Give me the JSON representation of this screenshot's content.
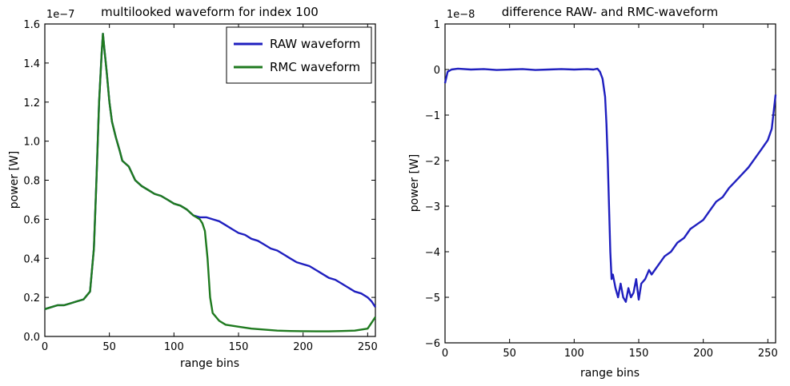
{
  "colors": {
    "raw": "#1f1fbf",
    "rmc": "#1f7a1f",
    "background": "#ffffff",
    "axis": "#000000"
  },
  "chart_data": [
    {
      "type": "line",
      "title": "multilooked waveform for index 100",
      "xlabel": "range bins",
      "ylabel": "power [W]",
      "offset_text": "1e−7",
      "xlim": [
        0,
        256
      ],
      "ylim": [
        0.0,
        1.6
      ],
      "xticks": [
        0,
        50,
        100,
        150,
        200,
        250
      ],
      "xtick_labels": [
        "0",
        "50",
        "100",
        "150",
        "200",
        "250"
      ],
      "yticks": [
        0.0,
        0.2,
        0.4,
        0.6,
        0.8,
        1.0,
        1.2,
        1.4,
        1.6
      ],
      "ytick_labels": [
        "0.0",
        "0.2",
        "0.4",
        "0.6",
        "0.8",
        "1.0",
        "1.2",
        "1.4",
        "1.6"
      ],
      "grid": false,
      "legend_position": "top-right",
      "series": [
        {
          "name": "RAW waveform",
          "color": "#1f1fbf",
          "x": [
            0,
            5,
            10,
            15,
            20,
            25,
            30,
            35,
            38,
            40,
            42,
            44,
            45,
            46,
            48,
            50,
            52,
            55,
            58,
            60,
            65,
            70,
            75,
            80,
            85,
            90,
            95,
            100,
            105,
            110,
            115,
            120,
            125,
            130,
            135,
            140,
            145,
            150,
            155,
            160,
            165,
            170,
            175,
            180,
            185,
            190,
            195,
            200,
            205,
            210,
            215,
            220,
            225,
            230,
            235,
            240,
            245,
            250,
            253,
            256
          ],
          "y": [
            0.14,
            0.15,
            0.16,
            0.16,
            0.17,
            0.18,
            0.19,
            0.23,
            0.45,
            0.8,
            1.2,
            1.45,
            1.55,
            1.48,
            1.35,
            1.2,
            1.1,
            1.02,
            0.95,
            0.9,
            0.87,
            0.8,
            0.77,
            0.75,
            0.73,
            0.72,
            0.7,
            0.68,
            0.67,
            0.65,
            0.62,
            0.61,
            0.61,
            0.6,
            0.59,
            0.57,
            0.55,
            0.53,
            0.52,
            0.5,
            0.49,
            0.47,
            0.45,
            0.44,
            0.42,
            0.4,
            0.38,
            0.37,
            0.36,
            0.34,
            0.32,
            0.3,
            0.29,
            0.27,
            0.25,
            0.23,
            0.22,
            0.2,
            0.18,
            0.15
          ]
        },
        {
          "name": "RMC waveform",
          "color": "#1f7a1f",
          "x": [
            0,
            5,
            10,
            15,
            20,
            25,
            30,
            35,
            38,
            40,
            42,
            44,
            45,
            46,
            48,
            50,
            52,
            55,
            58,
            60,
            65,
            70,
            75,
            80,
            85,
            90,
            95,
            100,
            105,
            110,
            115,
            120,
            122,
            124,
            126,
            128,
            130,
            135,
            140,
            150,
            160,
            170,
            180,
            190,
            200,
            210,
            220,
            230,
            240,
            245,
            250,
            253,
            256
          ],
          "y": [
            0.14,
            0.15,
            0.16,
            0.16,
            0.17,
            0.18,
            0.19,
            0.23,
            0.45,
            0.8,
            1.2,
            1.45,
            1.55,
            1.48,
            1.35,
            1.2,
            1.1,
            1.02,
            0.95,
            0.9,
            0.87,
            0.8,
            0.77,
            0.75,
            0.73,
            0.72,
            0.7,
            0.68,
            0.67,
            0.65,
            0.62,
            0.6,
            0.58,
            0.54,
            0.4,
            0.2,
            0.12,
            0.08,
            0.06,
            0.05,
            0.04,
            0.035,
            0.03,
            0.028,
            0.027,
            0.026,
            0.026,
            0.028,
            0.03,
            0.035,
            0.04,
            0.07,
            0.1
          ]
        }
      ]
    },
    {
      "type": "line",
      "title": "difference RAW- and RMC-waveform",
      "xlabel": "range bins",
      "ylabel": "power [W]",
      "offset_text": "1e−8",
      "xlim": [
        0,
        256
      ],
      "ylim": [
        -6,
        1
      ],
      "xticks": [
        0,
        50,
        100,
        150,
        200,
        250
      ],
      "xtick_labels": [
        "0",
        "50",
        "100",
        "150",
        "200",
        "250"
      ],
      "yticks": [
        -6,
        -5,
        -4,
        -3,
        -2,
        -1,
        0,
        1
      ],
      "ytick_labels": [
        "−6",
        "−5",
        "−4",
        "−3",
        "−2",
        "−1",
        "0",
        "1"
      ],
      "grid": false,
      "series": [
        {
          "color": "#1f1fbf",
          "x": [
            0,
            2,
            5,
            10,
            20,
            30,
            40,
            50,
            60,
            70,
            80,
            90,
            100,
            110,
            115,
            118,
            120,
            122,
            124,
            125,
            126,
            127,
            128,
            129,
            130,
            132,
            134,
            136,
            138,
            140,
            142,
            144,
            146,
            148,
            150,
            152,
            155,
            158,
            160,
            165,
            170,
            175,
            180,
            185,
            190,
            195,
            200,
            205,
            210,
            215,
            220,
            225,
            230,
            235,
            240,
            245,
            250,
            253,
            256
          ],
          "y": [
            -0.3,
            -0.05,
            0.0,
            0.02,
            0.0,
            0.01,
            -0.01,
            0.0,
            0.01,
            -0.01,
            0.0,
            0.01,
            0.0,
            0.01,
            0.0,
            0.02,
            -0.05,
            -0.2,
            -0.6,
            -1.2,
            -2.0,
            -3.0,
            -4.0,
            -4.6,
            -4.5,
            -4.8,
            -5.0,
            -4.7,
            -5.0,
            -5.1,
            -4.8,
            -5.0,
            -4.9,
            -4.6,
            -5.05,
            -4.7,
            -4.6,
            -4.4,
            -4.5,
            -4.3,
            -4.1,
            -4.0,
            -3.8,
            -3.7,
            -3.5,
            -3.4,
            -3.3,
            -3.1,
            -2.9,
            -2.8,
            -2.6,
            -2.45,
            -2.3,
            -2.15,
            -1.95,
            -1.75,
            -1.55,
            -1.3,
            -0.55
          ]
        }
      ]
    }
  ]
}
